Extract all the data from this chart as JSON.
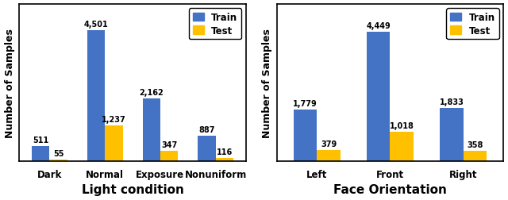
{
  "chart1": {
    "categories": [
      "Dark",
      "Normal",
      "Exposure",
      "Nonuniform"
    ],
    "train": [
      511,
      4501,
      2162,
      887
    ],
    "test": [
      55,
      1237,
      347,
      116
    ],
    "train_labels": [
      "511",
      "4,501",
      "2,162",
      "887"
    ],
    "test_labels": [
      "55",
      "1,237",
      "347",
      "116"
    ],
    "xlabel": "Light condition",
    "ylabel": "Number of Samples",
    "ylim": [
      0,
      5400
    ]
  },
  "chart2": {
    "categories": [
      "Left",
      "Front",
      "Right"
    ],
    "train": [
      1779,
      4449,
      1833
    ],
    "test": [
      379,
      1018,
      358
    ],
    "train_labels": [
      "1,779",
      "4,449",
      "1,833"
    ],
    "test_labels": [
      "379",
      "1,018",
      "358"
    ],
    "xlabel": "Face Orientation",
    "ylabel": "Number of Samples",
    "ylim": [
      0,
      5400
    ]
  },
  "train_color": "#4472C4",
  "test_color": "#FFC000",
  "bar_width": 0.32,
  "label_fontsize": 7.0,
  "tick_fontsize": 8.5,
  "ylabel_fontsize": 9,
  "xlabel_fontsize": 11,
  "legend_fontsize": 8.5
}
